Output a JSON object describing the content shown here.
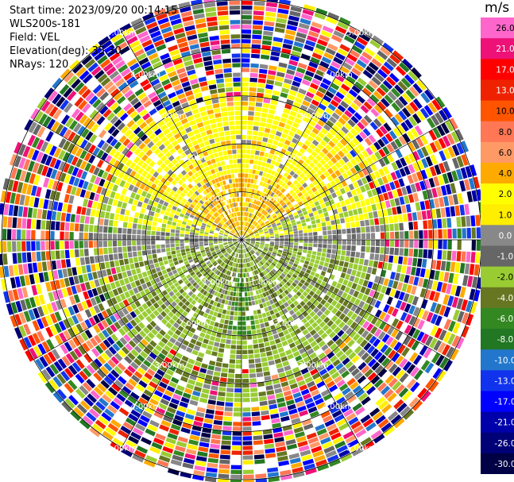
{
  "header": {
    "start_time": "Start time: 2023/09/20 00:14:15",
    "instrument": "WLS200s-181",
    "field": "Field: VEL",
    "elevation": "Elevation(deg): 35.30",
    "nrays": "NRays: 120"
  },
  "chart_data": {
    "type": "heatmap",
    "projection": "polar-ppi",
    "field": "VEL",
    "units": "m/s",
    "nrays": 120,
    "range_rings_km": [
      1,
      2,
      3,
      4,
      5
    ],
    "ring_labels": [
      "1.00km",
      "2.00km",
      "3.00km",
      "4.00km",
      "5.00km"
    ],
    "max_range_km": 5.0,
    "colorbar": {
      "tick_labels": [
        "26.0",
        "21.0",
        "17.0",
        "13.0",
        "10.0",
        "8.0",
        "6.0",
        "4.0",
        "2.0",
        "1.0",
        "0.0",
        "-1.0",
        "-2.0",
        "-4.0",
        "-6.0",
        "-8.0",
        "-10.0",
        "-13.0",
        "-17.0",
        "-21.0",
        "-26.0",
        "-30.0"
      ],
      "colors": [
        "#ff66cc",
        "#ee1177",
        "#ff0000",
        "#ee2200",
        "#ff5500",
        "#ff7755",
        "#ff9966",
        "#ffaa00",
        "#ffff00",
        "#ffee00",
        "#888888",
        "#666666",
        "#99cc33",
        "#667722",
        "#338822",
        "#227722",
        "#2277cc",
        "#1133ee",
        "#0000ff",
        "#0000aa",
        "#000077",
        "#000044"
      ]
    },
    "velocity_pattern": {
      "north_sector": "yellow (2.0 to 4.0 m/s)",
      "center_north": "orange (4.0 to 6.0 m/s)",
      "east_west_band": "gray (0.0 m/s)",
      "south_sector": "olive and green (-2.0 to -6.0 m/s)",
      "outer_ranges": "noise (all colors)"
    }
  }
}
